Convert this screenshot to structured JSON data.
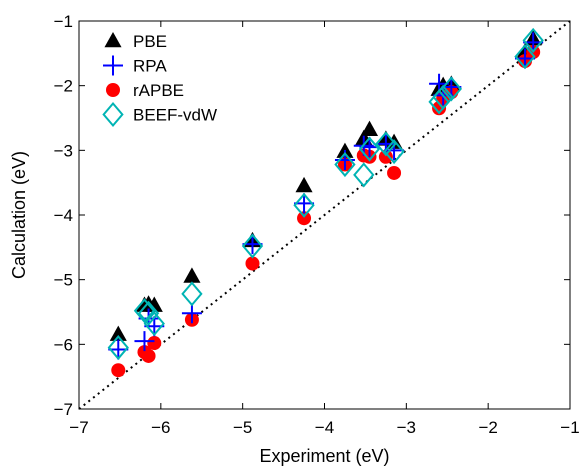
{
  "chart_data": {
    "type": "scatter",
    "xlabel": "Experiment (eV)",
    "ylabel": "Calculation (eV)",
    "xlim": [
      -7,
      -1
    ],
    "ylim": [
      -7,
      -1
    ],
    "xticks": [
      -7,
      -6,
      -5,
      -4,
      -3,
      -2,
      -1
    ],
    "yticks": [
      -7,
      -6,
      -5,
      -4,
      -3,
      -2,
      -1
    ],
    "xtick_labels": [
      "−7",
      "−6",
      "−5",
      "−4",
      "−3",
      "−2",
      "−1"
    ],
    "ytick_labels": [
      "−7",
      "−6",
      "−5",
      "−4",
      "−3",
      "−2",
      "−1"
    ],
    "grid": false,
    "legend_position": "top-left",
    "reference_line": "y = x",
    "experiment": [
      -6.52,
      -6.2,
      -6.15,
      -6.08,
      -5.62,
      -4.88,
      -4.25,
      -3.75,
      -3.52,
      -3.45,
      -3.25,
      -3.15,
      -2.6,
      -2.55,
      -2.45,
      -1.55,
      -1.45
    ],
    "series": [
      {
        "name": "PBE",
        "marker": "triangle",
        "color": "#000000",
        "y": [
          -5.85,
          -5.4,
          -5.38,
          -5.4,
          -4.95,
          -4.4,
          -3.55,
          -3.02,
          -2.82,
          -2.68,
          -2.83,
          -2.88,
          -2.06,
          -2.0,
          -1.98,
          -1.48,
          -1.28
        ]
      },
      {
        "name": "RPA",
        "marker": "plus",
        "color": "#0000ff",
        "y": [
          -6.08,
          -5.95,
          -5.6,
          -5.72,
          -5.52,
          -4.45,
          -3.82,
          -3.15,
          -2.93,
          -2.95,
          -2.9,
          -3.0,
          -1.97,
          -2.15,
          -2.02,
          -1.58,
          -1.33
        ]
      },
      {
        "name": "rAPBE",
        "marker": "circle",
        "color": "#ff0000",
        "y": [
          -6.4,
          -6.12,
          -6.18,
          -5.98,
          -5.62,
          -4.75,
          -4.05,
          -3.22,
          -3.08,
          -3.1,
          -3.1,
          -3.35,
          -2.35,
          -2.2,
          -2.1,
          -1.62,
          -1.48
        ]
      },
      {
        "name": "BEEF-vdW",
        "marker": "diamond",
        "color": "#00b4b4",
        "y": [
          -6.05,
          -5.48,
          -5.52,
          -5.68,
          -5.22,
          -4.48,
          -3.85,
          -3.22,
          -3.38,
          -2.98,
          -2.9,
          -3.02,
          -2.25,
          -2.18,
          -2.05,
          -1.55,
          -1.3
        ]
      }
    ]
  }
}
